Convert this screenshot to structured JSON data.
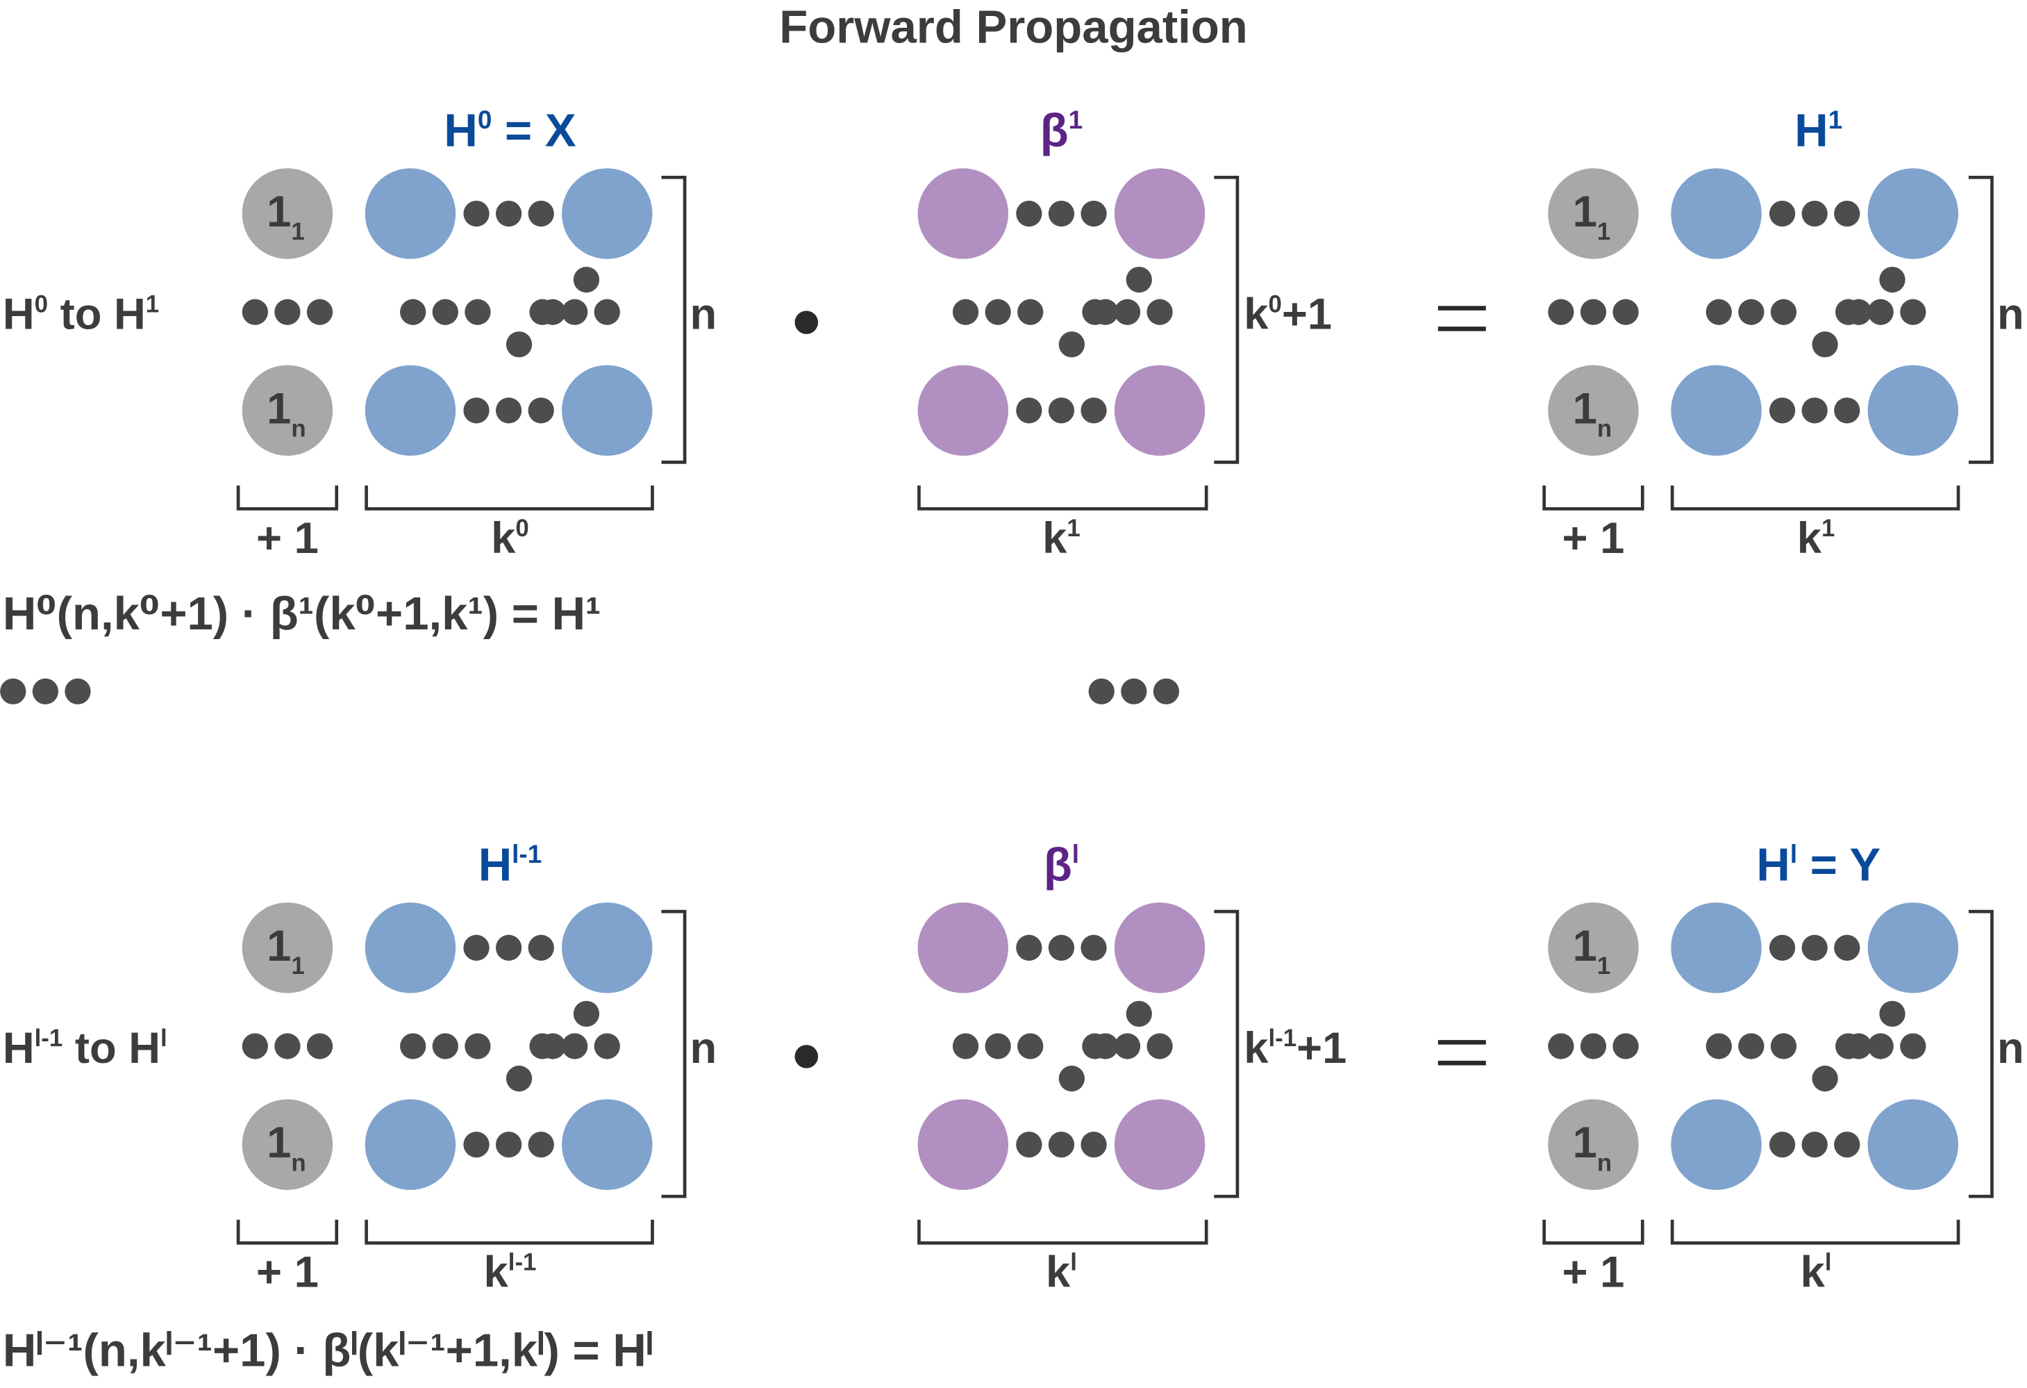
{
  "title": "Forward Propagation",
  "colors": {
    "text": "#3c3c3c",
    "blue_label": "#0a4a9a",
    "purple_label": "#5c2585",
    "gray_node": "#a8a8a8",
    "blue_node": "#7fa3cd",
    "purple_node": "#b190c1",
    "dot": "#4d4d4d",
    "bracket": "#333333"
  },
  "rows": [
    {
      "row_label": {
        "base": "H",
        "sup": "0",
        "mid": " to H",
        "sup2": "1"
      },
      "input": {
        "label_base": "H",
        "label_sup": "0",
        "label_suffix": " = X",
        "rows_label": "n",
        "bias_label": "+ 1",
        "width_base": "k",
        "width_sup": "0"
      },
      "operator": "•",
      "weights": {
        "label_base": "β",
        "label_sup": "1",
        "rows_base": "k",
        "rows_sup": "0",
        "rows_suffix": "+1",
        "width_base": "k",
        "width_sup": "1"
      },
      "equals": "=",
      "output": {
        "label_base": "H",
        "label_sup": "1",
        "label_suffix": "",
        "rows_label": "n",
        "bias_label": "+ 1",
        "width_base": "k",
        "width_sup": "1"
      },
      "bias_nodes": {
        "top": "1",
        "top_sub": "1",
        "bottom": "1",
        "bottom_sub": "n"
      },
      "equation": "H⁰(n,k⁰+1) · β¹(k⁰+1,k¹) = H¹"
    },
    {
      "row_label": {
        "base": "H",
        "sup": "l-1",
        "mid": " to H",
        "sup2": "l"
      },
      "input": {
        "label_base": "H",
        "label_sup": "l-1",
        "label_suffix": "",
        "rows_label": "n",
        "bias_label": "+ 1",
        "width_base": "k",
        "width_sup": "l-1"
      },
      "operator": "•",
      "weights": {
        "label_base": "β",
        "label_sup": "l",
        "rows_base": "k",
        "rows_sup": "l-1",
        "rows_suffix": "+1",
        "width_base": "k",
        "width_sup": "l"
      },
      "equals": "=",
      "output": {
        "label_base": "H",
        "label_sup": "l",
        "label_suffix": " = Y",
        "rows_label": "n",
        "bias_label": "+ 1",
        "width_base": "k",
        "width_sup": "l"
      },
      "bias_nodes": {
        "top": "1",
        "top_sub": "1",
        "bottom": "1",
        "bottom_sub": "n"
      },
      "equation": "Hˡ⁻¹(n,kˡ⁻¹+1) · βˡ(kˡ⁻¹+1,kˡ) = Hˡ"
    }
  ]
}
